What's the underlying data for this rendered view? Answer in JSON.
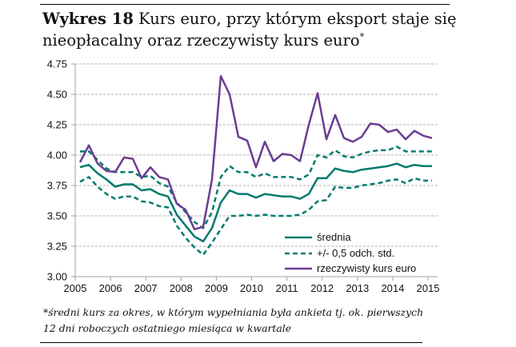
{
  "title": {
    "bold": "Wykres 18",
    "line1": " Kurs euro, przy którym eksport staje się",
    "line2": "nieopłacalny oraz rzeczywisty kurs euro",
    "marker": "*"
  },
  "footnote": {
    "line1": "*średni kurs za okres, w którym wypełniania była ankieta tj. ok. pierwszych",
    "line2": "12 dni roboczych ostatniego miesiąca w kwartale"
  },
  "colors": {
    "mean": "#007a6e",
    "band": "#007a6e",
    "actual": "#6a3d91",
    "grid": "#9a9a9a",
    "axis": "#a0a0a0"
  },
  "chart_data": {
    "type": "line",
    "title": "Kurs euro, przy którym eksport staje się nieopłacalny oraz rzeczywisty kurs euro",
    "xlabel": "",
    "ylabel": "",
    "frequency": "quarterly",
    "x_start": 2005,
    "xlim": [
      2005,
      2015
    ],
    "ylim": [
      3.0,
      4.75
    ],
    "x_ticks": [
      "2005",
      "2006",
      "2007",
      "2008",
      "2009",
      "2010",
      "2011",
      "2012",
      "2013",
      "2014",
      "2015"
    ],
    "y_ticks": [
      "3.00",
      "3.25",
      "3.50",
      "3.75",
      "4.00",
      "4.25",
      "4.50",
      "4.75"
    ],
    "grid": "horizontal dashed",
    "legend_position": "bottom-right",
    "series": [
      {
        "name": "średnia",
        "style": "solid",
        "color": "#007a6e",
        "values": [
          3.9,
          3.92,
          3.85,
          3.8,
          3.74,
          3.76,
          3.76,
          3.71,
          3.72,
          3.68,
          3.66,
          3.51,
          3.42,
          3.33,
          3.29,
          3.4,
          3.61,
          3.71,
          3.68,
          3.68,
          3.65,
          3.68,
          3.67,
          3.66,
          3.66,
          3.64,
          3.68,
          3.81,
          3.81,
          3.89,
          3.87,
          3.86,
          3.88,
          3.89,
          3.9,
          3.91,
          3.93,
          3.9,
          3.92,
          3.91,
          3.91
        ]
      },
      {
        "name": "+/- 0,5 odch. std.",
        "style": "dashed",
        "color": "#007a6e",
        "upper": [
          4.03,
          4.03,
          3.96,
          3.89,
          3.86,
          3.86,
          3.86,
          3.82,
          3.83,
          3.77,
          3.74,
          3.61,
          3.53,
          3.45,
          3.4,
          3.53,
          3.82,
          3.91,
          3.86,
          3.86,
          3.82,
          3.85,
          3.82,
          3.82,
          3.82,
          3.8,
          3.84,
          4.0,
          3.98,
          4.04,
          3.99,
          3.98,
          4.01,
          4.03,
          4.04,
          4.04,
          4.07,
          4.03,
          4.03,
          4.03,
          4.03
        ],
        "lower": [
          3.78,
          3.82,
          3.74,
          3.68,
          3.64,
          3.66,
          3.66,
          3.62,
          3.61,
          3.58,
          3.57,
          3.42,
          3.32,
          3.24,
          3.18,
          3.28,
          3.39,
          3.5,
          3.5,
          3.51,
          3.5,
          3.51,
          3.5,
          3.5,
          3.5,
          3.51,
          3.55,
          3.62,
          3.63,
          3.74,
          3.73,
          3.73,
          3.75,
          3.76,
          3.77,
          3.79,
          3.8,
          3.77,
          3.81,
          3.79,
          3.79
        ]
      },
      {
        "name": "rzeczywisty kurs euro",
        "style": "solid",
        "color": "#6a3d91",
        "values": [
          3.94,
          4.08,
          3.93,
          3.87,
          3.86,
          3.98,
          3.97,
          3.81,
          3.9,
          3.82,
          3.8,
          3.6,
          3.55,
          3.39,
          3.41,
          3.8,
          4.65,
          4.5,
          4.15,
          4.12,
          3.9,
          4.11,
          3.95,
          4.01,
          4.0,
          3.95,
          4.25,
          4.51,
          4.13,
          4.33,
          4.14,
          4.11,
          4.15,
          4.26,
          4.25,
          4.19,
          4.21,
          4.13,
          4.2,
          4.16,
          4.14
        ]
      }
    ]
  }
}
